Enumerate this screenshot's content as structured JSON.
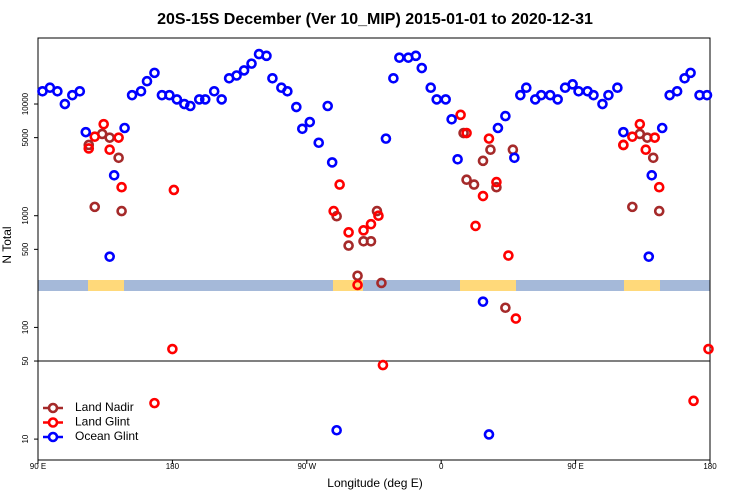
{
  "chart_data": {
    "type": "scatter",
    "title": "20S-15S December (Ver 10_MIP)   2015-01-01 to 2020-12-31",
    "x_label": "Longitude (deg E)",
    "y_label": "N Total",
    "log_y": true,
    "legend": "bottom-left",
    "hline": 50,
    "xlim": [
      -270,
      180
    ],
    "xticks": [
      {
        "value": -270,
        "label": "90 E"
      },
      {
        "value": -180,
        "label": "180"
      },
      {
        "value": -90,
        "label": "90 W"
      },
      0,
      {
        "value": 90,
        "label": "90 E"
      },
      180
    ],
    "ylim": [
      6.5,
      39000
    ],
    "yticks": [
      10,
      50,
      100,
      500,
      1000,
      5000,
      10000
    ],
    "series": [
      {
        "name": "Land Nadir",
        "color": "#a52a2a",
        "x": [
          -236,
          -232,
          -227,
          -222,
          -216,
          -214,
          -70,
          -62,
          -56,
          -52,
          -47,
          -43,
          -40,
          15,
          17,
          22,
          28,
          33,
          37,
          43,
          48,
          122,
          128,
          133,
          138,
          142,
          146
        ],
        "values": [
          4300,
          1200,
          5400,
          5000,
          3300,
          1100,
          990,
          540,
          290,
          590,
          590,
          1100,
          250,
          5500,
          2100,
          1900,
          3100,
          3900,
          1800,
          150,
          3900,
          4300,
          1200,
          5400,
          5000,
          3300,
          1100
        ]
      },
      {
        "name": "Land Glint",
        "color": "#ff0000",
        "x": [
          -236,
          -232,
          -226,
          -222,
          -216,
          -214,
          -192,
          -180,
          -179,
          -72,
          -68,
          -62,
          -56,
          -52,
          -47,
          -42,
          -39,
          13,
          17,
          23,
          28,
          32,
          37,
          45,
          50,
          122,
          128,
          133,
          137,
          143,
          146,
          169,
          179
        ],
        "values": [
          4000,
          5100,
          6600,
          3900,
          5000,
          1800,
          21,
          64,
          1700,
          1100,
          1900,
          710,
          240,
          740,
          840,
          1000,
          46,
          8000,
          5500,
          810,
          1500,
          4900,
          2000,
          440,
          120,
          4300,
          5100,
          6600,
          3900,
          5000,
          1800,
          22,
          64
        ]
      },
      {
        "name": "Ocean Glint",
        "color": "#0000ff",
        "x": [
          -267,
          -262,
          -257,
          -252,
          -247,
          -242,
          -238,
          -222,
          -219,
          -212,
          -207,
          -201,
          -197,
          -192,
          -187,
          -182,
          -177,
          -172,
          -168,
          -162,
          -158,
          -152,
          -147,
          -142,
          -137,
          -132,
          -127,
          -122,
          -117,
          -113,
          -107,
          -103,
          -97,
          -93,
          -88,
          -82,
          -76,
          -73,
          -70,
          -37,
          -32,
          -28,
          -22,
          -17,
          -13,
          -7,
          -3,
          3,
          7,
          11,
          28,
          32,
          38,
          43,
          49,
          53,
          57,
          63,
          67,
          73,
          78,
          83,
          88,
          92,
          98,
          102,
          108,
          112,
          118,
          122,
          139,
          141,
          148,
          153,
          158,
          163,
          167,
          173,
          178
        ],
        "values": [
          13000,
          14000,
          13000,
          10000,
          12000,
          13000,
          5600,
          430,
          2300,
          6100,
          12000,
          13000,
          16000,
          19000,
          12000,
          12000,
          11000,
          10000,
          9600,
          11000,
          11000,
          13000,
          11000,
          17000,
          18000,
          20000,
          23000,
          28000,
          27000,
          17000,
          14000,
          13000,
          9400,
          6000,
          6900,
          4500,
          9600,
          3000,
          12,
          4900,
          17000,
          26000,
          26000,
          27000,
          21000,
          14000,
          11000,
          11000,
          7300,
          3200,
          170,
          11,
          6100,
          7800,
          3300,
          12000,
          14000,
          11000,
          12000,
          12000,
          11000,
          14000,
          15000,
          13000,
          13000,
          12000,
          10000,
          12000,
          14000,
          5600,
          430,
          2300,
          6100,
          12000,
          13000,
          17000,
          19000,
          12000,
          12000
        ]
      }
    ]
  }
}
